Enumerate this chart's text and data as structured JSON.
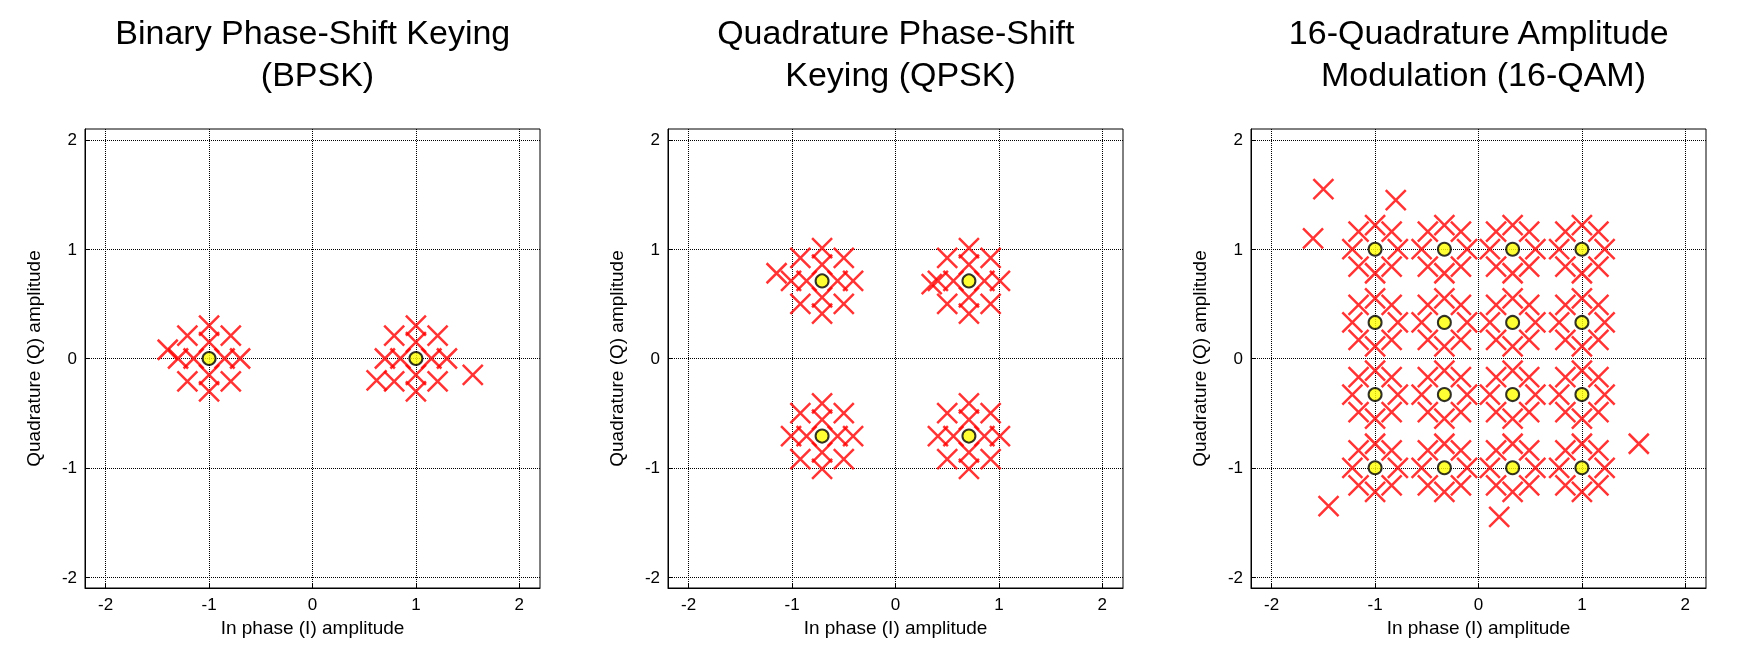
{
  "chart_data": [
    {
      "type": "scatter",
      "title": "Binary Phase-Shift Keying (BPSK)",
      "xlabel": "In phase (I) amplitude",
      "ylabel": "Quadrature (Q) amplitude",
      "xlim": [
        -2.2,
        2.2
      ],
      "ylim": [
        -2.1,
        2.1
      ],
      "xticks": [
        -2,
        -1,
        0,
        1,
        2
      ],
      "yticks": [
        -2,
        -1,
        0,
        1,
        2
      ],
      "grid": true,
      "series": [
        {
          "color": "#ff0000",
          "marker": "cross",
          "x": [
            -0.85,
            -1.15,
            -1,
            -1,
            -0.7,
            -1.3,
            -1,
            -1,
            -0.79,
            -1.21,
            -0.79,
            -1.21,
            1.15,
            0.85,
            1,
            1,
            1.3,
            0.7,
            1,
            1,
            1.21,
            0.79,
            1.21,
            0.79,
            1.55,
            0.62,
            -1.4
          ],
          "values": [
            0,
            0,
            0.15,
            -0.15,
            0,
            0,
            0.3,
            -0.3,
            0.21,
            0.21,
            -0.21,
            -0.21,
            0,
            0,
            0.15,
            -0.15,
            0,
            0,
            0.3,
            -0.3,
            0.21,
            0.21,
            -0.21,
            -0.21,
            -0.15,
            -0.2,
            0.08
          ]
        },
        {
          "color": "#ffff00",
          "marker": "circle",
          "x": [
            -1,
            1
          ],
          "values": [
            0,
            0
          ]
        }
      ]
    },
    {
      "type": "scatter",
      "title": "Quadrature Phase-Shift Keying (QPSK)",
      "xlabel": "In phase (I) amplitude",
      "ylabel": "Quadrature (Q) amplitude",
      "xlim": [
        -2.2,
        2.2
      ],
      "ylim": [
        -2.1,
        2.1
      ],
      "xticks": [
        -2,
        -1,
        0,
        1,
        2
      ],
      "yticks": [
        -2,
        -1,
        0,
        1,
        2
      ],
      "grid": true,
      "series": [
        {
          "color": "#ff0000",
          "marker": "cross",
          "x": [
            -0.56,
            -0.86,
            -0.71,
            -0.71,
            -0.41,
            -1.01,
            -0.71,
            -0.71,
            -0.5,
            -0.92,
            -0.5,
            -0.92,
            0.86,
            0.56,
            0.71,
            0.71,
            1.01,
            0.41,
            0.71,
            0.71,
            0.92,
            0.5,
            0.92,
            0.5,
            -0.56,
            -0.86,
            -0.71,
            -0.71,
            -0.41,
            -1.01,
            -0.71,
            -0.71,
            -0.5,
            -0.92,
            -0.5,
            -0.92,
            0.86,
            0.56,
            0.71,
            0.71,
            1.01,
            0.41,
            0.71,
            0.71,
            0.92,
            0.5,
            0.92,
            0.5,
            -1.15,
            0.35
          ],
          "values": [
            0.71,
            0.71,
            0.86,
            0.56,
            0.71,
            0.71,
            1.01,
            0.41,
            0.92,
            0.92,
            0.5,
            0.5,
            0.71,
            0.71,
            0.86,
            0.56,
            0.71,
            0.71,
            1.01,
            0.41,
            0.92,
            0.92,
            0.5,
            0.5,
            -0.71,
            -0.71,
            -0.56,
            -0.86,
            -0.71,
            -0.71,
            -0.41,
            -1.01,
            -0.5,
            -0.5,
            -0.92,
            -0.92,
            -0.71,
            -0.71,
            -0.56,
            -0.86,
            -0.71,
            -0.71,
            -0.41,
            -1.01,
            -0.5,
            -0.5,
            -0.92,
            -0.92,
            0.78,
            0.68
          ]
        },
        {
          "color": "#ffff00",
          "marker": "circle",
          "x": [
            -0.71,
            0.71,
            -0.71,
            0.71
          ],
          "values": [
            0.71,
            0.71,
            -0.71,
            -0.71
          ]
        }
      ]
    },
    {
      "type": "scatter",
      "title": "16-Quadrature Amplitude Modulation (16-QAM)",
      "xlabel": "In phase (I) amplitude",
      "ylabel": "Quadrature (Q) amplitude",
      "xlim": [
        -2.2,
        2.2
      ],
      "ylim": [
        -2.1,
        2.1
      ],
      "xticks": [
        -2,
        -1,
        0,
        1,
        2
      ],
      "yticks": [
        -2,
        -1,
        0,
        1,
        2
      ],
      "grid": true,
      "series": [
        {
          "color": "#ff0000",
          "marker": "cross",
          "x": [
            -0.78,
            -1.22,
            -1,
            -1,
            -0.84,
            -1.16,
            -0.84,
            -1.16,
            -0.11,
            -0.55,
            -0.33,
            -0.33,
            -0.17,
            -0.49,
            -0.17,
            -0.49,
            0.55,
            0.11,
            0.33,
            0.33,
            0.49,
            0.17,
            0.49,
            0.17,
            1.22,
            0.78,
            1,
            1,
            1.16,
            0.84,
            1.16,
            0.84,
            -0.78,
            -1.22,
            -1,
            -1,
            -0.84,
            -1.16,
            -0.84,
            -1.16,
            -0.11,
            -0.55,
            -0.33,
            -0.33,
            -0.17,
            -0.49,
            -0.17,
            -0.49,
            0.55,
            0.11,
            0.33,
            0.33,
            0.49,
            0.17,
            0.49,
            0.17,
            1.22,
            0.78,
            1,
            1,
            1.16,
            0.84,
            1.16,
            0.84,
            -0.78,
            -1.22,
            -1,
            -1,
            -0.84,
            -1.16,
            -0.84,
            -1.16,
            -0.11,
            -0.55,
            -0.33,
            -0.33,
            -0.17,
            -0.49,
            -0.17,
            -0.49,
            0.55,
            0.11,
            0.33,
            0.33,
            0.49,
            0.17,
            0.49,
            0.17,
            1.22,
            0.78,
            1,
            1,
            1.16,
            0.84,
            1.16,
            0.84,
            -0.78,
            -1.22,
            -1,
            -1,
            -0.84,
            -1.16,
            -0.84,
            -1.16,
            -0.11,
            -0.55,
            -0.33,
            -0.33,
            -0.17,
            -0.49,
            -0.17,
            -0.49,
            0.55,
            0.11,
            0.33,
            0.33,
            0.49,
            0.17,
            0.49,
            0.17,
            1.22,
            0.78,
            1,
            1,
            1.16,
            0.84,
            1.16,
            0.84,
            -1.5,
            -1.6,
            -1.45,
            1.55,
            0.2,
            -0.8
          ],
          "values": [
            1,
            1,
            1.22,
            0.78,
            1.16,
            1.16,
            0.84,
            0.84,
            1,
            1,
            1.22,
            0.78,
            1.16,
            1.16,
            0.84,
            0.84,
            1,
            1,
            1.22,
            0.78,
            1.16,
            1.16,
            0.84,
            0.84,
            1,
            1,
            1.22,
            0.78,
            1.16,
            1.16,
            0.84,
            0.84,
            0.33,
            0.33,
            0.55,
            0.11,
            0.49,
            0.49,
            0.17,
            0.17,
            0.33,
            0.33,
            0.55,
            0.11,
            0.49,
            0.49,
            0.17,
            0.17,
            0.33,
            0.33,
            0.55,
            0.11,
            0.49,
            0.49,
            0.17,
            0.17,
            0.33,
            0.33,
            0.55,
            0.11,
            0.49,
            0.49,
            0.17,
            0.17,
            -0.33,
            -0.33,
            -0.11,
            -0.55,
            -0.17,
            -0.17,
            -0.49,
            -0.49,
            -0.33,
            -0.33,
            -0.11,
            -0.55,
            -0.17,
            -0.17,
            -0.49,
            -0.49,
            -0.33,
            -0.33,
            -0.11,
            -0.55,
            -0.17,
            -0.17,
            -0.49,
            -0.49,
            -0.33,
            -0.33,
            -0.11,
            -0.55,
            -0.17,
            -0.17,
            -0.49,
            -0.49,
            -1,
            -1,
            -0.78,
            -1.22,
            -0.84,
            -0.84,
            -1.16,
            -1.16,
            -1,
            -1,
            -0.78,
            -1.22,
            -0.84,
            -0.84,
            -1.16,
            -1.16,
            -1,
            -1,
            -0.78,
            -1.22,
            -0.84,
            -0.84,
            -1.16,
            -1.16,
            -1,
            -1,
            -0.78,
            -1.22,
            -0.84,
            -0.84,
            -1.16,
            -1.16,
            1.55,
            1.1,
            -1.35,
            -0.78,
            -1.45,
            1.45
          ]
        },
        {
          "color": "#ffff00",
          "marker": "circle",
          "x": [
            -1,
            -0.33,
            0.33,
            1,
            -1,
            -0.33,
            0.33,
            1,
            -1,
            -0.33,
            0.33,
            1,
            -1,
            -0.33,
            0.33,
            1
          ],
          "values": [
            1,
            1,
            1,
            1,
            0.33,
            0.33,
            0.33,
            0.33,
            -0.33,
            -0.33,
            -0.33,
            -0.33,
            -1,
            -1,
            -1,
            -1
          ]
        }
      ]
    }
  ]
}
